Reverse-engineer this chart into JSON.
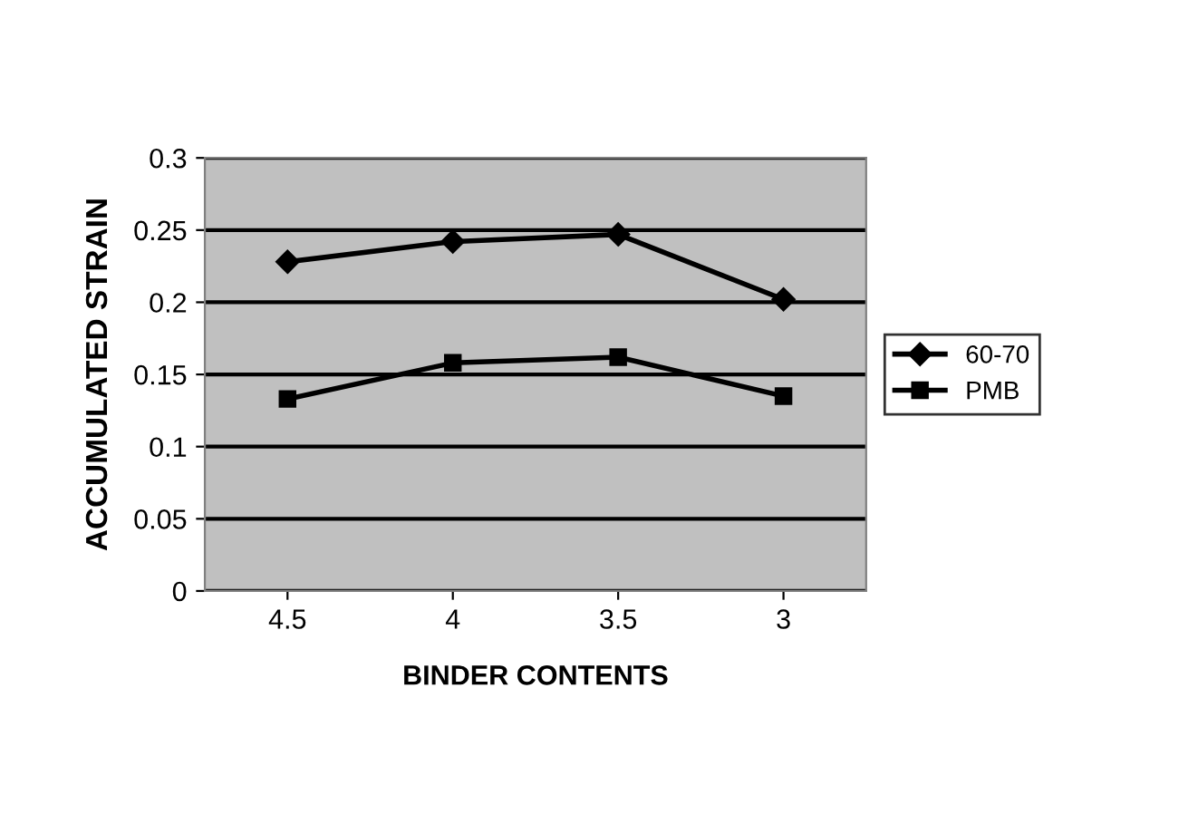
{
  "chart_data": {
    "type": "line",
    "xlabel": "BINDER CONTENTS",
    "ylabel": "ACCUMULATED STRAIN",
    "categories": [
      "4.5",
      "4",
      "3.5",
      "3"
    ],
    "series": [
      {
        "name": "60-70",
        "color": "#000000",
        "marker": "diamond",
        "values": [
          0.228,
          0.242,
          0.247,
          0.202
        ]
      },
      {
        "name": "PMB",
        "color": "#000000",
        "marker": "square",
        "values": [
          0.133,
          0.158,
          0.162,
          0.135
        ]
      }
    ],
    "ylim": [
      0,
      0.3
    ],
    "yticks": [
      0,
      0.05,
      0.1,
      0.15,
      0.2,
      0.25,
      0.3
    ],
    "grid": "y",
    "legend": "right",
    "line_style": "solid"
  }
}
